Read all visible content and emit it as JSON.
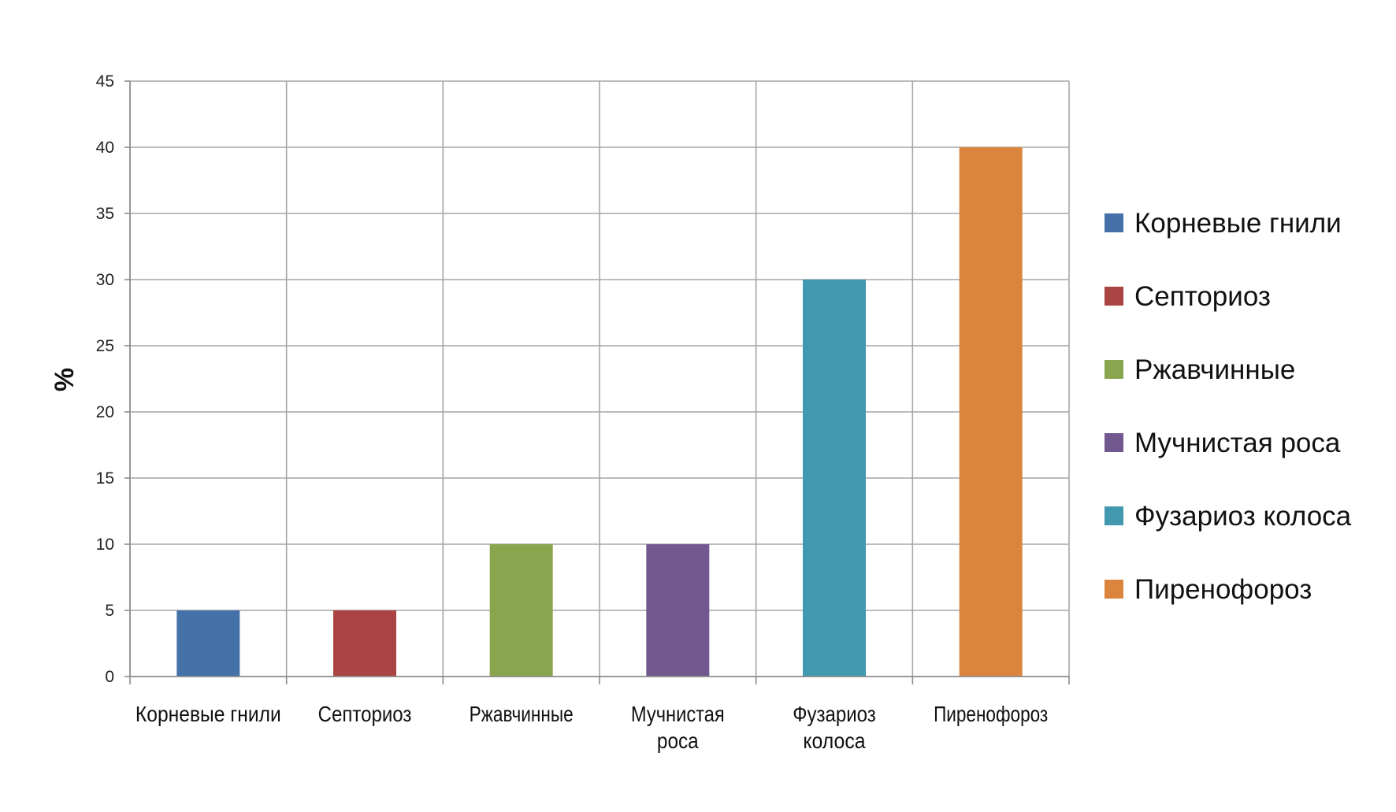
{
  "chart_data": {
    "type": "bar",
    "categories": [
      [
        "Корневые гнили"
      ],
      [
        "Септориоз"
      ],
      [
        "Ржавчинные"
      ],
      [
        "Мучнистая",
        "роса"
      ],
      [
        "Фузариоз",
        "колоса"
      ],
      [
        "Пиренофороз"
      ]
    ],
    "values": [
      5,
      5,
      10,
      10,
      30,
      40
    ],
    "colors": [
      "#4472a8",
      "#aa4443",
      "#89a54d",
      "#71588f",
      "#4198af",
      "#db843d"
    ],
    "ylabel": "%",
    "ylim": [
      0,
      45
    ],
    "yticks": [
      "0",
      "5",
      "10",
      "15",
      "20",
      "25",
      "30",
      "35",
      "40",
      "45"
    ],
    "grid": true,
    "legend": {
      "placement": "right",
      "entries": [
        "Корневые гнили",
        "Септориоз",
        "Ржавчинные",
        "Мучнистая роса",
        "Фузариоз колоса",
        "Пиренофороз"
      ]
    }
  }
}
